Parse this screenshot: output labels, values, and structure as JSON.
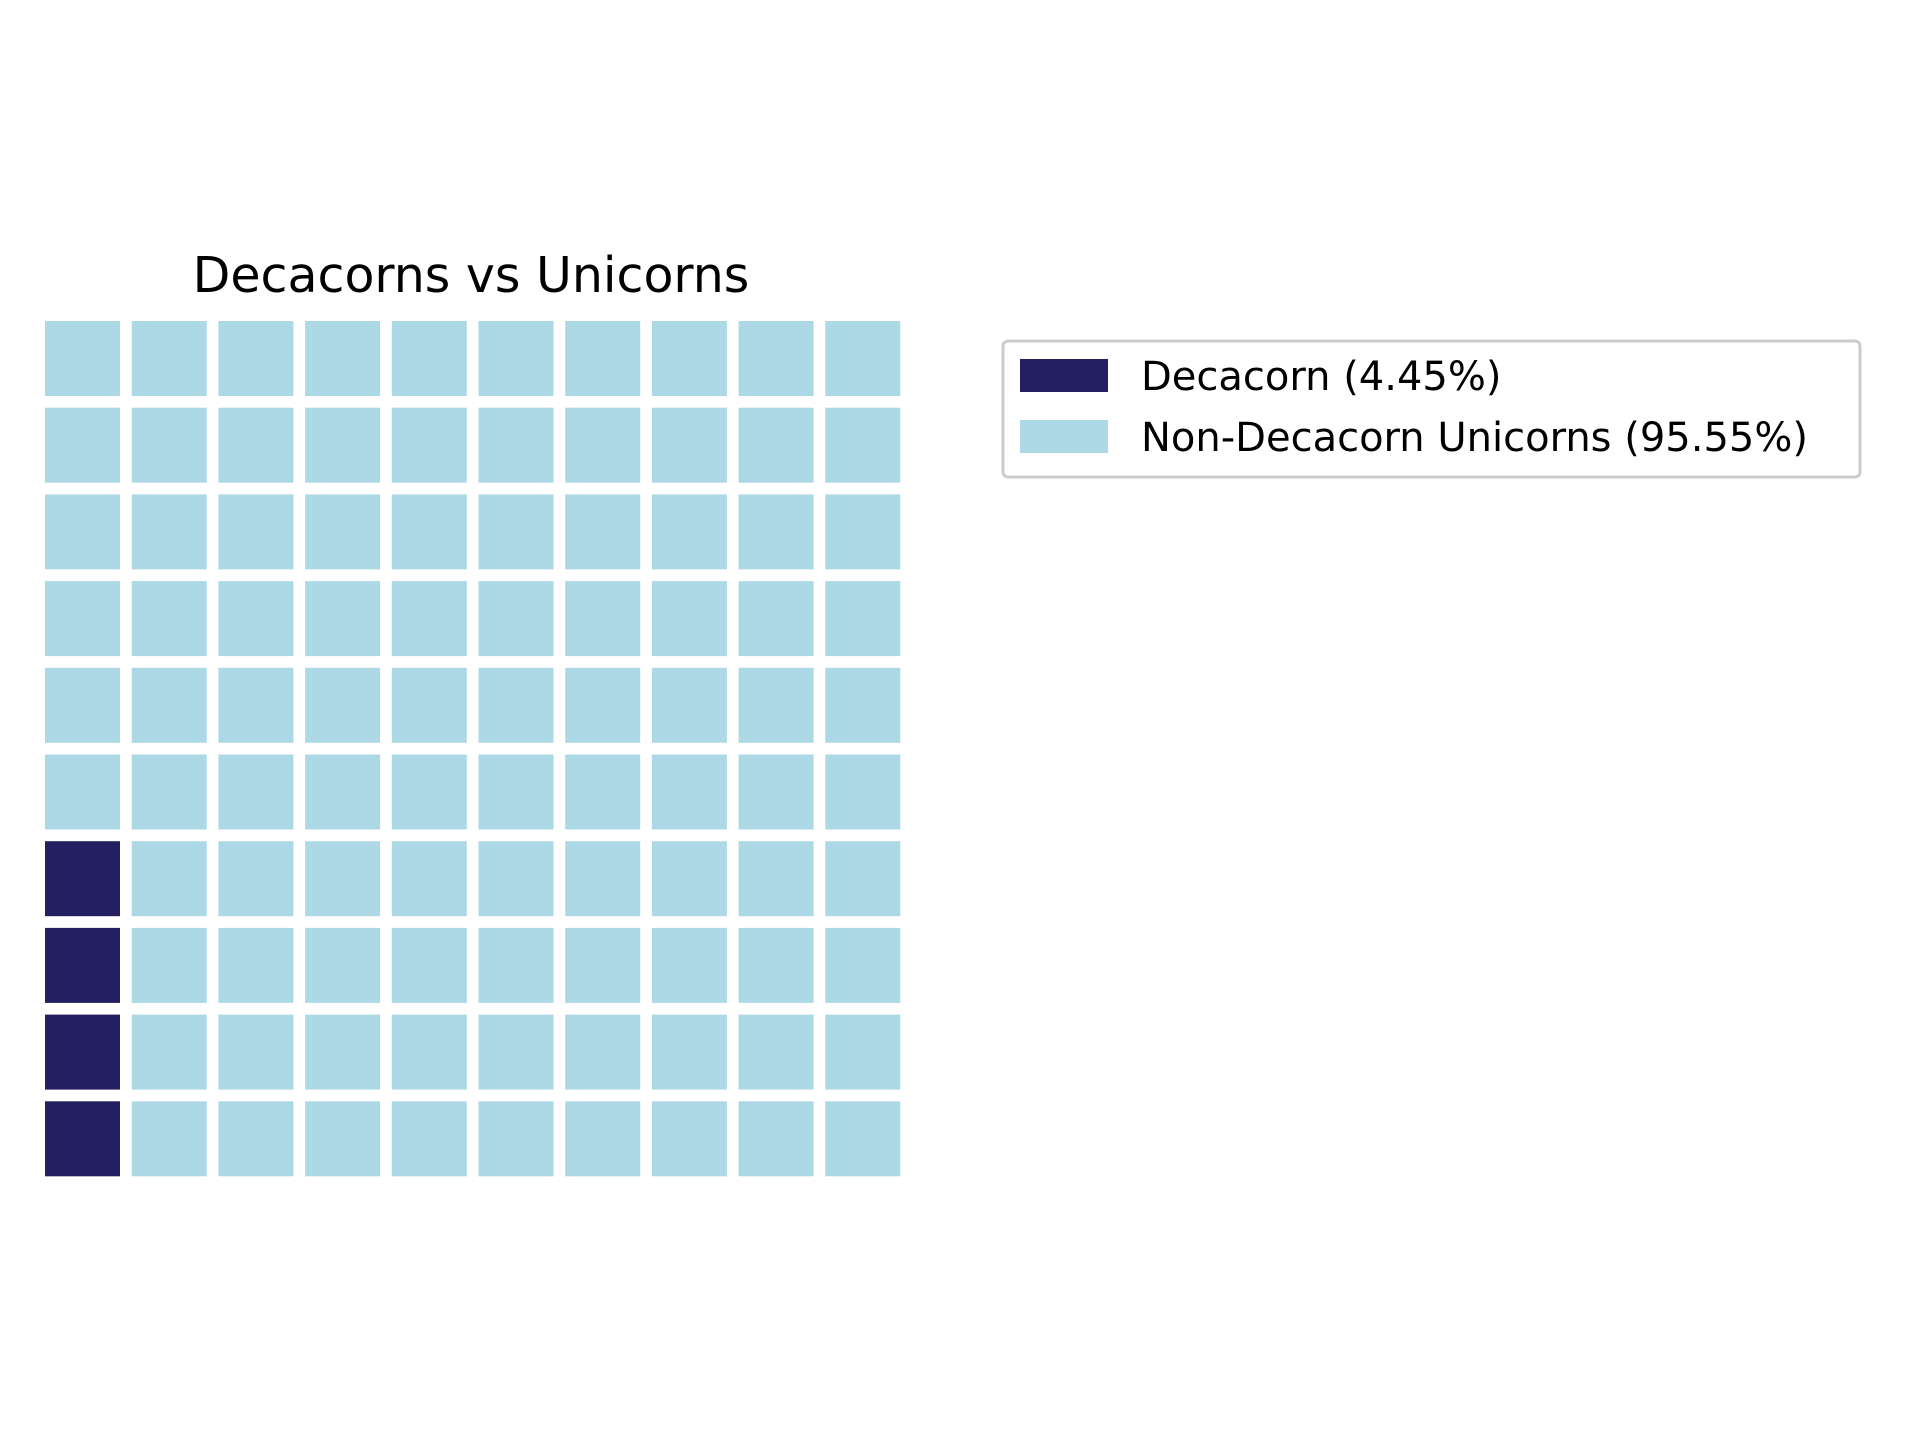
{
  "chart_data": {
    "type": "waffle",
    "title": "Decacorns vs Unicorns",
    "grid": {
      "rows": 10,
      "columns": 10
    },
    "fill_order": "column-major from bottom-left",
    "categories": [
      "Decacorn",
      "Non-Decacorn Unicorns"
    ],
    "percentages": [
      4.45,
      95.55
    ],
    "squares": [
      4,
      96
    ],
    "legend": {
      "placement": "right",
      "entries": [
        {
          "label": "Decacorn (4.45%)",
          "color": "#231f62"
        },
        {
          "label": "Non-Decacorn Unicorns (95.55%)",
          "color": "#add8e6"
        }
      ]
    },
    "grid_lines": false,
    "axes_visible": false
  },
  "colors": {
    "decacorn": "#231f62",
    "non_decacorn": "#add8e6",
    "background": "#ffffff",
    "legend_border": "#cccccc"
  }
}
